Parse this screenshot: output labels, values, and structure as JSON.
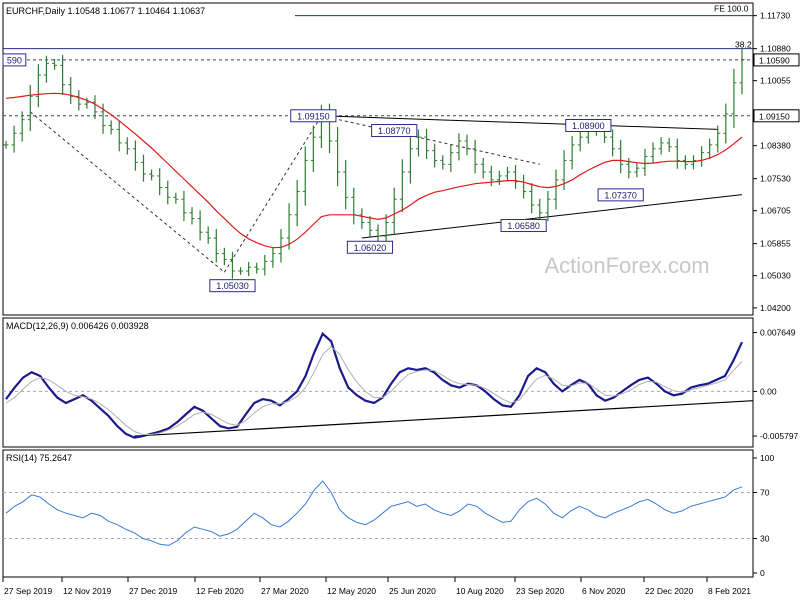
{
  "chart_data": [
    {
      "type": "line",
      "panel": "price",
      "title": "EURCHF,Daily  1.10548 1.10677 1.10464 1.10637",
      "watermark": "ActionForex.com",
      "y_ticks": [
        "1.11730",
        "1.10880",
        "1.10055",
        "1.09150",
        "1.08380",
        "1.07530",
        "1.06705",
        "1.05855",
        "1.05030",
        "1.04200"
      ],
      "ylim": [
        1.0412,
        1.1185
      ],
      "series": [
        {
          "type": "ohlc",
          "color": "#2e7d32",
          "values": [
            1.084,
            1.087,
            1.0905,
            1.0965,
            1.102,
            1.105,
            1.1045,
            1.0995,
            1.0965,
            1.0945,
            1.095,
            1.0925,
            1.089,
            1.088,
            1.0845,
            1.083,
            1.0795,
            1.0765,
            1.076,
            1.073,
            1.0705,
            1.07,
            1.0665,
            1.065,
            1.0615,
            1.06,
            1.056,
            1.0545,
            1.0515,
            1.0515,
            1.0525,
            1.052,
            1.054,
            1.056,
            1.06,
            1.066,
            1.072,
            1.08,
            1.086,
            1.0915,
            1.085,
            1.077,
            1.0705,
            1.066,
            1.064,
            1.062,
            1.0605,
            1.064,
            1.07,
            1.077,
            1.083,
            1.086,
            1.0825,
            1.08,
            1.079,
            1.082,
            1.085,
            1.083,
            1.079,
            1.077,
            1.075,
            1.076,
            1.077,
            1.0745,
            1.072,
            1.0685,
            1.0665,
            1.07,
            1.075,
            1.08,
            1.084,
            1.086,
            1.088,
            1.0875,
            1.086,
            1.083,
            1.079,
            1.077,
            1.078,
            1.081,
            1.083,
            1.0845,
            1.0835,
            1.08,
            1.079,
            1.08,
            1.082,
            1.084,
            1.087,
            1.092,
            1.1,
            1.106
          ],
          "x_range": [
            "27 Sep 2019",
            "12 Feb 2021"
          ]
        },
        {
          "type": "moving-average",
          "color": "#dd1b1b",
          "values": [
            1.096,
            1.0962,
            1.0965,
            1.0968,
            1.097,
            1.0972,
            1.0973,
            1.0972,
            1.0968,
            1.0962,
            1.0955,
            1.0945,
            1.0932,
            1.0918,
            1.0902,
            1.0885,
            1.0868,
            1.085,
            1.0832,
            1.0812,
            1.0792,
            1.0772,
            1.0752,
            1.0732,
            1.0712,
            1.0692,
            1.067,
            1.065,
            1.063,
            1.0612,
            1.0598,
            1.0588,
            1.058,
            1.0575,
            1.0576,
            1.0584,
            1.0597,
            1.0615,
            1.0635,
            1.0655,
            1.066,
            1.066,
            1.066,
            1.066,
            1.0656,
            1.0652,
            1.0648,
            1.0652,
            1.0662,
            1.0672,
            1.0685,
            1.07,
            1.071,
            1.0718,
            1.0722,
            1.0727,
            1.0732,
            1.0736,
            1.074,
            1.0742,
            1.0744,
            1.0746,
            1.0748,
            1.0748,
            1.0744,
            1.0738,
            1.0732,
            1.073,
            1.0733,
            1.074,
            1.075,
            1.0763,
            1.0775,
            1.0785,
            1.0795,
            1.08,
            1.08,
            1.0797,
            1.0794,
            1.0792,
            1.0793,
            1.0796,
            1.0798,
            1.0798,
            1.0797,
            1.0797,
            1.08,
            1.0806,
            1.0815,
            1.0827,
            1.0843,
            1.086
          ]
        }
      ],
      "annotations": [
        {
          "label": "1.05030",
          "x_index": 28,
          "value": 1.0503
        },
        {
          "label": "1.09150",
          "x_index": 38,
          "value": 1.0915
        },
        {
          "label": "1.08770",
          "x_index": 48,
          "value": 1.0877
        },
        {
          "label": "1.06020",
          "x_index": 45,
          "value": 1.0602
        },
        {
          "label": "1.06580",
          "x_index": 64,
          "value": 1.0658
        },
        {
          "label": "1.08900",
          "x_index": 72,
          "value": 1.089
        },
        {
          "label": "1.07370",
          "x_index": 76,
          "value": 1.0737
        },
        {
          "label": "590",
          "x_index": 1,
          "value": 1.1059
        },
        {
          "label": "FE 100.0",
          "x_index": 84,
          "value": 1.1173
        },
        {
          "label": "38.2",
          "x_index": 89,
          "value": 1.1088
        }
      ],
      "price_labels": {
        "last": "1.10590",
        "level": "1.09150"
      },
      "horizontal_lines": [
        1.1173,
        1.1088,
        1.1059,
        1.0915
      ]
    },
    {
      "type": "line",
      "panel": "macd",
      "title": "MACD(12,26,9) 0.006426 0.003928",
      "y_ticks": [
        "0.007649",
        "0.00",
        "-0.005797"
      ],
      "ylim": [
        -0.0067,
        0.0085
      ],
      "series": [
        {
          "name": "MACD",
          "color": "#1a1a8c",
          "values": [
            -0.001,
            0.0005,
            0.0018,
            0.0025,
            0.002,
            0.0005,
            -0.0008,
            -0.0015,
            -0.001,
            -0.0005,
            -0.0012,
            -0.0022,
            -0.0032,
            -0.0045,
            -0.0055,
            -0.006,
            -0.0058,
            -0.0055,
            -0.0052,
            -0.0048,
            -0.004,
            -0.003,
            -0.002,
            -0.0025,
            -0.0035,
            -0.0045,
            -0.0048,
            -0.0046,
            -0.003,
            -0.0015,
            -0.001,
            -0.0012,
            -0.0018,
            -0.001,
            0.0,
            0.002,
            0.005,
            0.0075,
            0.0065,
            0.003,
            0.0005,
            -0.0005,
            -0.0012,
            -0.0015,
            -0.0008,
            0.001,
            0.0025,
            0.003,
            0.0028,
            0.003,
            0.0025,
            0.0015,
            0.0008,
            0.0005,
            0.001,
            0.0008,
            0.0,
            -0.001,
            -0.0018,
            -0.002,
            -0.0005,
            0.002,
            0.003,
            0.0025,
            0.001,
            0.0,
            0.0008,
            0.0015,
            0.001,
            -0.0005,
            -0.0012,
            -0.0008,
            0.0,
            0.0008,
            0.0015,
            0.0018,
            0.001,
            0.0,
            -0.0005,
            -0.0003,
            0.0005,
            0.0008,
            0.001,
            0.0015,
            0.002,
            0.004,
            0.0064
          ]
        },
        {
          "name": "Signal",
          "color": "#b0b0b0",
          "values": [
            -0.0015,
            -0.0008,
            0.0003,
            0.0013,
            0.0018,
            0.0015,
            0.0008,
            0.0,
            -0.0005,
            -0.0007,
            -0.001,
            -0.0016,
            -0.0024,
            -0.0034,
            -0.0044,
            -0.0052,
            -0.0056,
            -0.0056,
            -0.0054,
            -0.005,
            -0.0045,
            -0.0038,
            -0.003,
            -0.0027,
            -0.003,
            -0.0036,
            -0.0042,
            -0.0044,
            -0.0038,
            -0.0028,
            -0.002,
            -0.0016,
            -0.0016,
            -0.0013,
            -0.0007,
            0.0005,
            0.0025,
            0.0048,
            0.0058,
            0.0048,
            0.0028,
            0.0012,
            0.0,
            -0.0008,
            -0.0008,
            0.0,
            0.0012,
            0.0022,
            0.0026,
            0.0028,
            0.0027,
            0.0021,
            0.0014,
            0.001,
            0.0009,
            0.0008,
            0.0004,
            -0.0003,
            -0.001,
            -0.0015,
            -0.0011,
            0.0003,
            0.0016,
            0.0021,
            0.0016,
            0.0008,
            0.0007,
            0.0011,
            0.0011,
            0.0003,
            -0.0005,
            -0.0006,
            -0.0003,
            0.0002,
            0.0009,
            0.0013,
            0.0012,
            0.0006,
            0.0001,
            -0.0001,
            0.0002,
            0.0005,
            0.0008,
            0.0011,
            0.0015,
            0.0027,
            0.0039
          ]
        }
      ],
      "trend_line": [
        -0.0058,
        -0.0012
      ]
    },
    {
      "type": "line",
      "panel": "rsi",
      "title": "RSI(14) 75.2647",
      "y_ticks": [
        "100",
        "70",
        "30",
        "0"
      ],
      "ylim": [
        0,
        100
      ],
      "levels": [
        70,
        30
      ],
      "series": [
        {
          "name": "RSI",
          "color": "#3a7bd5",
          "values": [
            52,
            58,
            62,
            68,
            66,
            60,
            55,
            52,
            50,
            48,
            52,
            50,
            45,
            42,
            38,
            35,
            30,
            28,
            25,
            24,
            28,
            35,
            40,
            38,
            36,
            32,
            34,
            38,
            45,
            52,
            48,
            42,
            40,
            45,
            52,
            60,
            72,
            80,
            70,
            55,
            48,
            44,
            42,
            46,
            52,
            58,
            60,
            62,
            58,
            60,
            55,
            52,
            50,
            54,
            60,
            58,
            52,
            48,
            44,
            45,
            55,
            62,
            65,
            60,
            52,
            48,
            54,
            58,
            55,
            50,
            48,
            52,
            55,
            58,
            62,
            64,
            60,
            55,
            52,
            54,
            58,
            60,
            62,
            64,
            66,
            72,
            75
          ]
        }
      ],
      "x_tick_labels": [
        "27 Sep 2019",
        "12 Nov 2019",
        "27 Dec 2019",
        "12 Feb 2020",
        "27 Mar 2020",
        "12 May 2020",
        "25 Jun 2020",
        "10 Aug 2020",
        "23 Sep 2020",
        "6 Nov 2020",
        "22 Dec 2020",
        "8 Feb 2021"
      ]
    }
  ]
}
